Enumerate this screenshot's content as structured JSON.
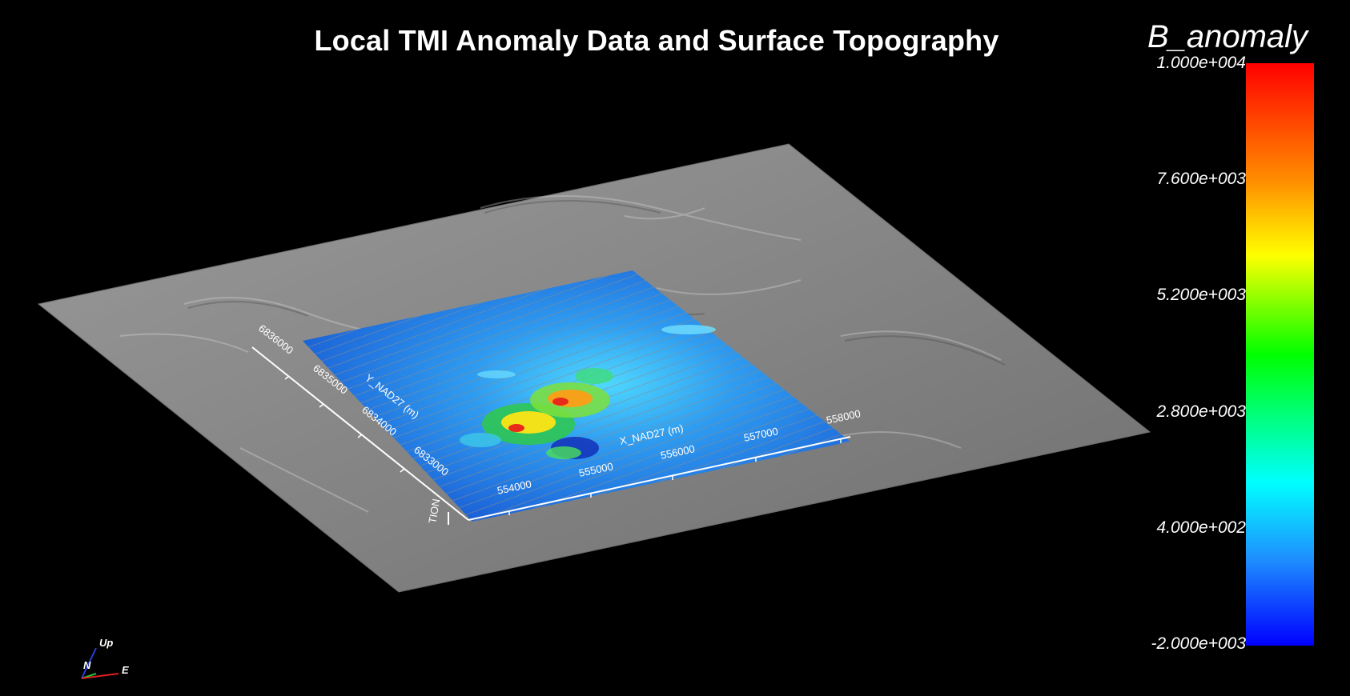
{
  "title": "Local TMI Anomaly Data and Surface Topography",
  "legend": {
    "title": "B_anomaly",
    "ticks": [
      "1.000e+004",
      "7.600e+003",
      "5.200e+003",
      "2.800e+003",
      "4.000e+002",
      "-2.000e+003"
    ],
    "colors": [
      "#ff0000",
      "#ff8c00",
      "#ffff00",
      "#00ff00",
      "#00ffff",
      "#0000ff"
    ]
  },
  "axes": {
    "x_label": "X_NAD27 (m)",
    "y_label": "Y_NAD27 (m)",
    "z_label": "TION",
    "x_ticks": [
      "554000",
      "555000",
      "556000",
      "557000",
      "558000"
    ],
    "y_ticks": [
      "6836000",
      "6835000",
      "6834000",
      "6833000"
    ]
  },
  "orientation": {
    "up": "Up",
    "north": "N",
    "east": "E"
  },
  "colors": {
    "background": "#000000",
    "terrain": "#8a8a8a",
    "data_base": "#1e6fd8"
  }
}
